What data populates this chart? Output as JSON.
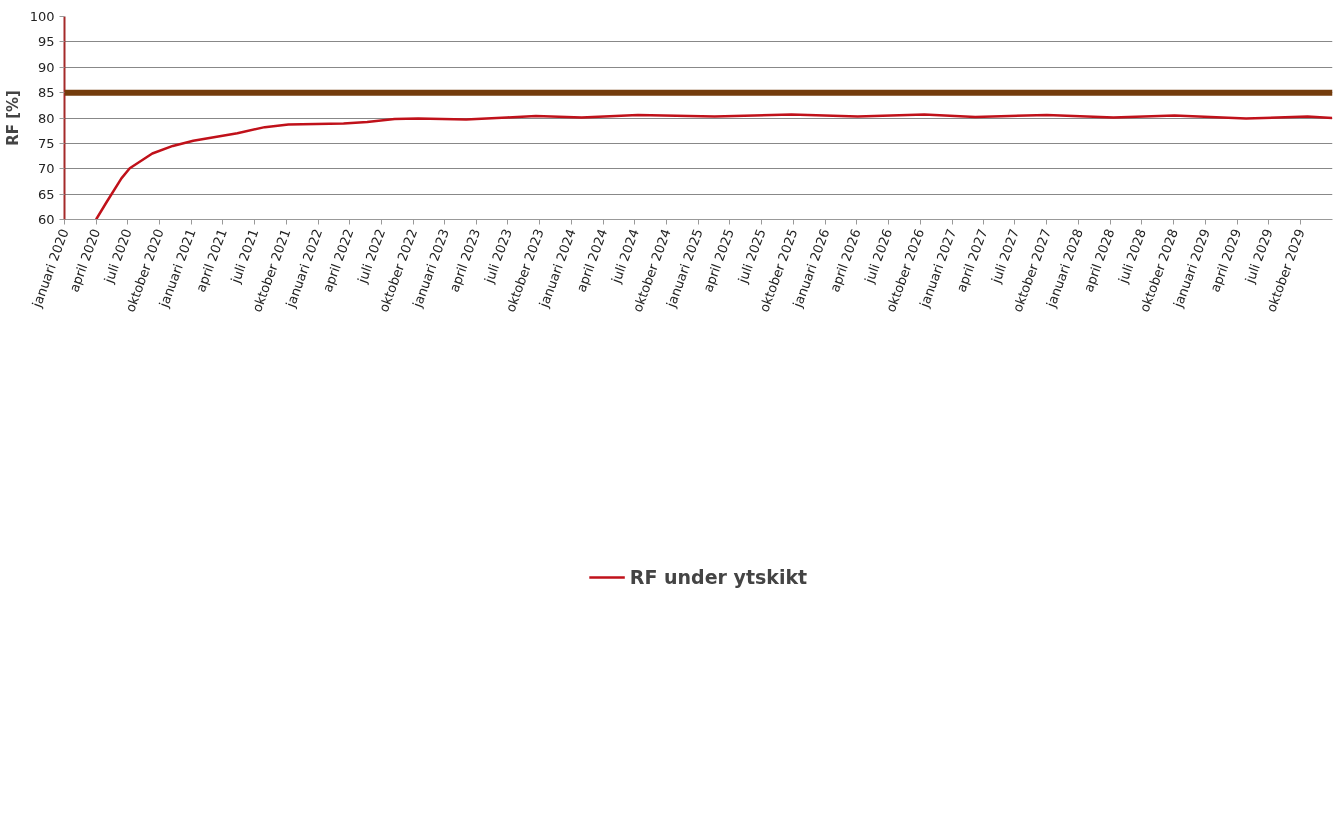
{
  "chart_data": {
    "type": "line",
    "ylabel": "RF [%]",
    "x": [
      "2020-04-01",
      "2020-05-01",
      "2020-06-13",
      "2020-07-07",
      "2020-09-10",
      "2020-11-08",
      "2021-01-06",
      "2021-05-13",
      "2021-07-31",
      "2021-10-07",
      "2022-03-15",
      "2022-05-22",
      "2022-08-09",
      "2022-10-16",
      "2023-03-03",
      "2023-06-29",
      "2023-09-20",
      "2024-01-30",
      "2024-07-10",
      "2025-02-16",
      "2025-09-25",
      "2026-04-04",
      "2026-10-13",
      "2027-03-09",
      "2027-10-01",
      "2028-04-10",
      "2028-10-03",
      "2029-04-27",
      "2029-10-21",
      "2029-12-31"
    ],
    "series": [
      {
        "name": "RF under ytskikt",
        "color": "#c0111a",
        "values": [
          60,
          63.4,
          68.1,
          70.1,
          73.0,
          74.5,
          75.5,
          77.0,
          78.2,
          78.7,
          78.9,
          79.2,
          79.8,
          79.9,
          79.7,
          80.1,
          80.4,
          80.1,
          80.6,
          80.3,
          80.7,
          80.3,
          80.7,
          80.2,
          80.6,
          80.1,
          80.5,
          79.9,
          80.3,
          80.0
        ]
      }
    ],
    "xlim": [
      "2020-01-01",
      "2030-01-01"
    ],
    "xticks": [
      {
        "value": "2020-01-01",
        "label": "januari 2020"
      },
      {
        "value": "2020-04-01",
        "label": "april 2020"
      },
      {
        "value": "2020-07-01",
        "label": "juli 2020"
      },
      {
        "value": "2020-10-01",
        "label": "oktober 2020"
      },
      {
        "value": "2021-01-01",
        "label": "januari 2021"
      },
      {
        "value": "2021-04-01",
        "label": "april 2021"
      },
      {
        "value": "2021-07-01",
        "label": "juli 2021"
      },
      {
        "value": "2021-10-01",
        "label": "oktober 2021"
      },
      {
        "value": "2022-01-01",
        "label": "januari 2022"
      },
      {
        "value": "2022-04-01",
        "label": "april 2022"
      },
      {
        "value": "2022-07-01",
        "label": "juli 2022"
      },
      {
        "value": "2022-10-01",
        "label": "oktober 2022"
      },
      {
        "value": "2023-01-01",
        "label": "januari 2023"
      },
      {
        "value": "2023-04-01",
        "label": "april 2023"
      },
      {
        "value": "2023-07-01",
        "label": "juli 2023"
      },
      {
        "value": "2023-10-01",
        "label": "oktober 2023"
      },
      {
        "value": "2024-01-01",
        "label": "januari 2024"
      },
      {
        "value": "2024-04-01",
        "label": "april 2024"
      },
      {
        "value": "2024-07-01",
        "label": "juli 2024"
      },
      {
        "value": "2024-10-01",
        "label": "oktober 2024"
      },
      {
        "value": "2025-01-01",
        "label": "januari 2025"
      },
      {
        "value": "2025-04-01",
        "label": "april 2025"
      },
      {
        "value": "2025-07-01",
        "label": "juli 2025"
      },
      {
        "value": "2025-10-01",
        "label": "oktober 2025"
      },
      {
        "value": "2026-01-01",
        "label": "januari 2026"
      },
      {
        "value": "2026-04-01",
        "label": "april 2026"
      },
      {
        "value": "2026-07-01",
        "label": "juli 2026"
      },
      {
        "value": "2026-10-01",
        "label": "oktober 2026"
      },
      {
        "value": "2027-01-01",
        "label": "januari 2027"
      },
      {
        "value": "2027-04-01",
        "label": "april 2027"
      },
      {
        "value": "2027-07-01",
        "label": "juli 2027"
      },
      {
        "value": "2027-10-01",
        "label": "oktober 2027"
      },
      {
        "value": "2028-01-01",
        "label": "januari 2028"
      },
      {
        "value": "2028-04-01",
        "label": "april 2028"
      },
      {
        "value": "2028-07-01",
        "label": "juli 2028"
      },
      {
        "value": "2028-10-01",
        "label": "oktober 2028"
      },
      {
        "value": "2029-01-01",
        "label": "januari 2029"
      },
      {
        "value": "2029-04-01",
        "label": "april 2029"
      },
      {
        "value": "2029-07-01",
        "label": "juli 2029"
      },
      {
        "value": "2029-10-01",
        "label": "oktober 2029"
      }
    ],
    "ylim": [
      60,
      100
    ],
    "yticks": [
      60,
      65,
      70,
      75,
      80,
      85,
      90,
      95,
      100
    ],
    "ref_lines": [
      {
        "axis": "y",
        "value": 85,
        "label": null,
        "color": "#743c0c"
      }
    ],
    "grid": "y",
    "legend": "bottom",
    "marker": "none",
    "line_style": "solid"
  }
}
